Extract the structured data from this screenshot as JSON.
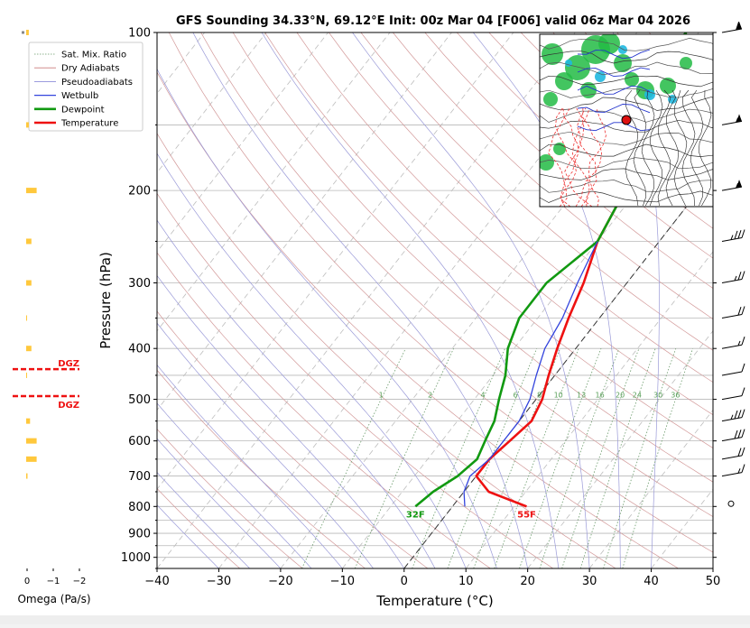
{
  "chart_data": {
    "type": "skew-t",
    "title": "GFS Sounding 34.33°N, 69.12°E Init: 00z Mar 04 [F006] valid 06z Mar 04 2026",
    "xlabel": "Temperature (°C)",
    "ylabel": "Pressure (hPa)",
    "xlim": [
      -40,
      50
    ],
    "ylim": [
      1050,
      100
    ],
    "x_ticks": [
      "−40",
      "−30",
      "−20",
      "−10",
      "0",
      "10",
      "20",
      "30",
      "40",
      "50"
    ],
    "y_ticks": [
      "100",
      "200",
      "300",
      "400",
      "500",
      "600",
      "700",
      "800",
      "900",
      "1000"
    ],
    "y_scale": "log",
    "grid": true,
    "legend_position": "upper-left",
    "legend": [
      {
        "label": "Sat. Mix. Ratio",
        "color": "#6a9a6a",
        "style": "dotted"
      },
      {
        "label": "Dry Adiabats",
        "color": "#c97a7a",
        "style": "solid-thin"
      },
      {
        "label": "Pseudoadiabats",
        "color": "#7a7ad4",
        "style": "solid-thin"
      },
      {
        "label": "Wetbulb",
        "color": "#3344dd",
        "style": "solid"
      },
      {
        "label": "Dewpoint",
        "color": "#119911",
        "style": "solid-thick"
      },
      {
        "label": "Temperature",
        "color": "#ee1111",
        "style": "solid-thick"
      }
    ],
    "series": [
      {
        "name": "Temperature",
        "color": "#ee1111",
        "points": [
          [
            100,
            -10
          ],
          [
            150,
            -10
          ],
          [
            200,
            -12
          ],
          [
            250,
            -10
          ],
          [
            300,
            -7
          ],
          [
            350,
            -5
          ],
          [
            400,
            -3
          ],
          [
            450,
            -1
          ],
          [
            500,
            1
          ],
          [
            550,
            2
          ],
          [
            600,
            1
          ],
          [
            650,
            0
          ],
          [
            700,
            0
          ],
          [
            750,
            4
          ],
          [
            800,
            12
          ]
        ]
      },
      {
        "name": "Dewpoint",
        "color": "#119911",
        "points": [
          [
            100,
            -22
          ],
          [
            150,
            -26
          ],
          [
            200,
            -12
          ],
          [
            250,
            -10
          ],
          [
            300,
            -13
          ],
          [
            350,
            -13
          ],
          [
            400,
            -11
          ],
          [
            450,
            -8
          ],
          [
            500,
            -6
          ],
          [
            550,
            -4
          ],
          [
            600,
            -3
          ],
          [
            650,
            -2
          ],
          [
            700,
            -3
          ],
          [
            750,
            -5
          ],
          [
            800,
            -6
          ]
        ]
      },
      {
        "name": "Wetbulb",
        "color": "#3344dd",
        "points": [
          [
            250,
            -10
          ],
          [
            300,
            -8
          ],
          [
            350,
            -6
          ],
          [
            400,
            -5
          ],
          [
            450,
            -3
          ],
          [
            500,
            -1
          ],
          [
            550,
            0
          ],
          [
            600,
            0
          ],
          [
            650,
            0
          ],
          [
            700,
            -1
          ],
          [
            750,
            0
          ],
          [
            800,
            2
          ]
        ]
      }
    ],
    "mixing_ratio_labels": [
      "1",
      "2",
      "4",
      "6",
      "8",
      "10",
      "13",
      "16",
      "20",
      "24",
      "30",
      "36"
    ],
    "mixing_ratio_values": [
      1,
      2,
      4,
      6,
      8,
      10,
      13,
      16,
      20,
      24,
      30,
      36
    ],
    "surface_labels": {
      "temperature": "55F",
      "dewpoint": "32F"
    },
    "omega": {
      "label": "Omega (Pa/s)",
      "ticks": [
        "0",
        "−1",
        "−2"
      ],
      "dgz_label": "DGZ",
      "dgz_pressures": [
        438,
        493
      ],
      "bars": [
        {
          "p": 100,
          "v": -0.1
        },
        {
          "p": 150,
          "v": -0.1
        },
        {
          "p": 200,
          "v": -0.4
        },
        {
          "p": 250,
          "v": -0.2
        },
        {
          "p": 300,
          "v": -0.2
        },
        {
          "p": 350,
          "v": -0.02
        },
        {
          "p": 400,
          "v": -0.2
        },
        {
          "p": 450,
          "v": -0.02
        },
        {
          "p": 550,
          "v": -0.15
        },
        {
          "p": 600,
          "v": -0.4
        },
        {
          "p": 650,
          "v": -0.4
        },
        {
          "p": 700,
          "v": -0.05
        }
      ]
    },
    "wind_barbs": [
      {
        "p": 100,
        "kt": 60
      },
      {
        "p": 150,
        "kt": 55
      },
      {
        "p": 200,
        "kt": 55
      },
      {
        "p": 250,
        "kt": 35
      },
      {
        "p": 300,
        "kt": 25
      },
      {
        "p": 350,
        "kt": 20
      },
      {
        "p": 400,
        "kt": 15
      },
      {
        "p": 450,
        "kt": 10
      },
      {
        "p": 500,
        "kt": 10
      },
      {
        "p": 550,
        "kt": 35
      },
      {
        "p": 600,
        "kt": 30
      },
      {
        "p": 650,
        "kt": 20
      },
      {
        "p": 700,
        "kt": 15
      },
      {
        "p": 800,
        "kt": 0
      }
    ],
    "inset_map": {
      "marker_color": "#dd1111"
    }
  }
}
